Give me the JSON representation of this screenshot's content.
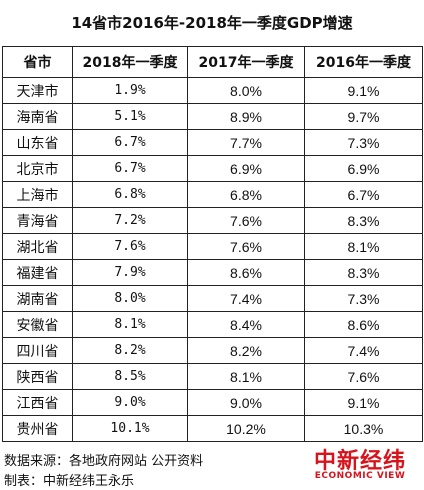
{
  "title": "14省市2016年-2018年一季度GDP增速",
  "columns": [
    "省市",
    "2018年一季度",
    "2017年一季度",
    "2016年一季度"
  ],
  "rows": [
    [
      "天津市",
      "1.9%",
      "8.0%",
      "9.1%"
    ],
    [
      "海南省",
      "5.1%",
      "8.9%",
      "9.7%"
    ],
    [
      "山东省",
      "6.7%",
      "7.7%",
      "7.3%"
    ],
    [
      "北京市",
      "6.7%",
      "6.9%",
      "6.9%"
    ],
    [
      "上海市",
      "6.8%",
      "6.8%",
      "6.7%"
    ],
    [
      "青海省",
      "7.2%",
      "7.6%",
      "8.3%"
    ],
    [
      "湖北省",
      "7.6%",
      "7.6%",
      "8.1%"
    ],
    [
      "福建省",
      "7.9%",
      "8.6%",
      "8.3%"
    ],
    [
      "湖南省",
      "8.0%",
      "7.4%",
      "7.3%"
    ],
    [
      "安徽省",
      "8.1%",
      "8.4%",
      "8.6%"
    ],
    [
      "四川省",
      "8.2%",
      "8.2%",
      "7.4%"
    ],
    [
      "陕西省",
      "8.5%",
      "8.1%",
      "7.6%"
    ],
    [
      "江西省",
      "9.0%",
      "9.0%",
      "9.1%"
    ],
    [
      "贵州省",
      "10.1%",
      "10.2%",
      "10.3%"
    ]
  ],
  "footer": {
    "source": "数据来源：各地政府网站  公开资料",
    "maker": "制表：中新经纬王永乐"
  },
  "logo": {
    "cn": "中新经纬",
    "en": "ECONOMIC VIEW",
    "color": "#d7131b"
  }
}
